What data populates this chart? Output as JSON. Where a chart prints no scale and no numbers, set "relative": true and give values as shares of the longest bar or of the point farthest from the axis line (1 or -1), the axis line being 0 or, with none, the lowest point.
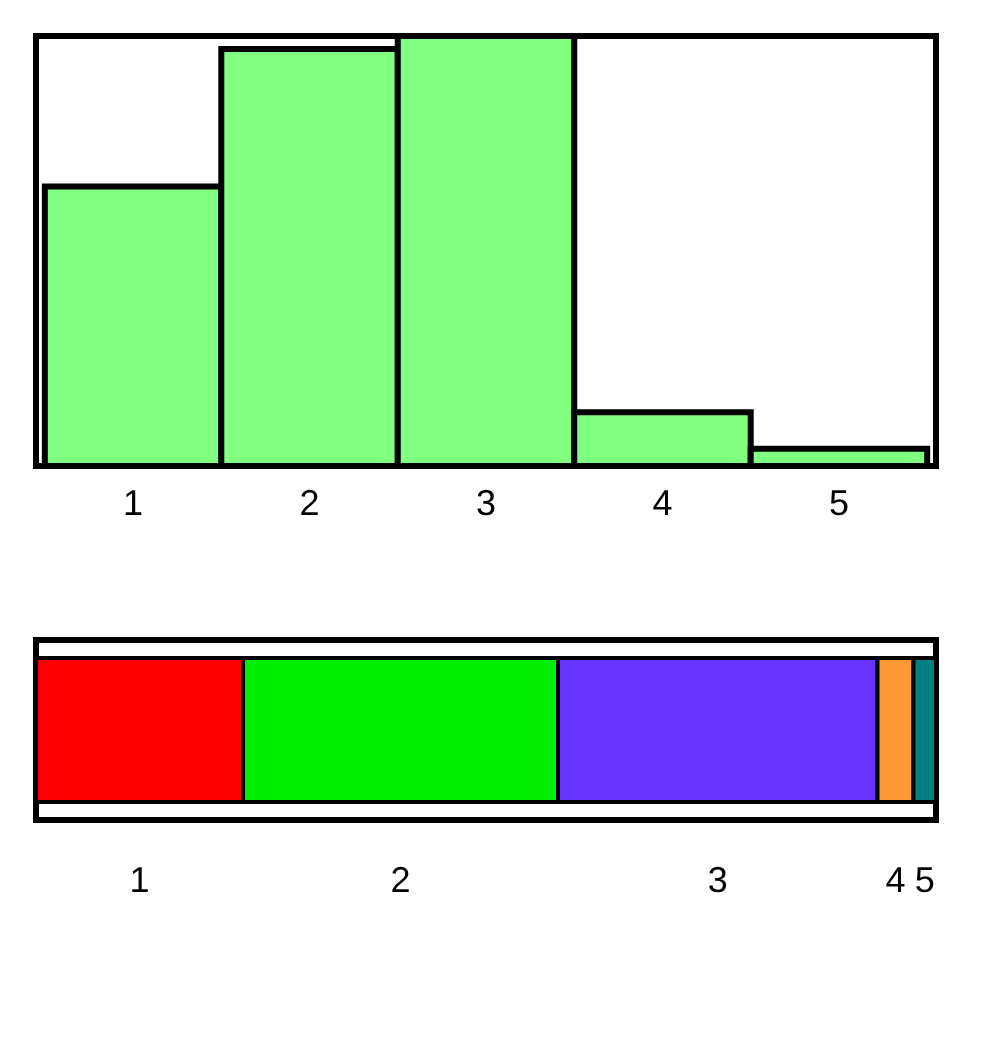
{
  "chart_data": [
    {
      "type": "bar",
      "categories": [
        "1",
        "2",
        "3",
        "4",
        "5"
      ],
      "values": [
        0.65,
        0.97,
        1,
        0.125,
        0.04
      ],
      "color": "#80ff80",
      "relative": true
    },
    {
      "type": "bar",
      "orientation": "horizontal",
      "stacked": true,
      "relative": true,
      "categories": [
        null
      ],
      "legend": false,
      "series": [
        {
          "name": "1",
          "color": "#ff0000",
          "values": [
            0.23
          ]
        },
        {
          "name": "2",
          "color": "#00ee00",
          "values": [
            0.35
          ]
        },
        {
          "name": "3",
          "color": "#6633ff",
          "values": [
            0.355
          ]
        },
        {
          "name": "4",
          "color": "#ff9933",
          "values": [
            0.04
          ]
        },
        {
          "name": "5",
          "color": "#008080",
          "values": [
            0.025
          ]
        }
      ]
    }
  ]
}
